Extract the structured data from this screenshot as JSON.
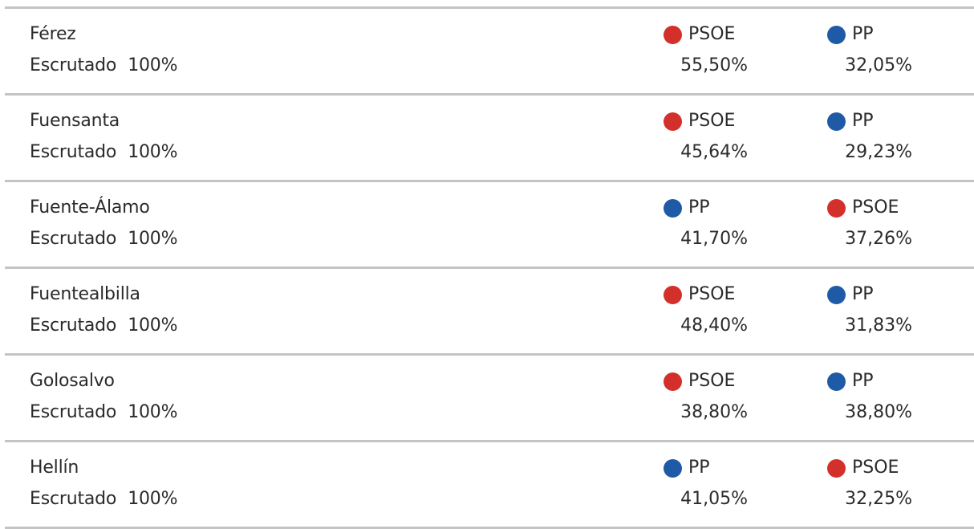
{
  "colors": {
    "PSOE": "#d3302b",
    "PP": "#1f5aa6",
    "divider": "#c4c4c4"
  },
  "rows": [
    {
      "municipality": "Férez",
      "status_label": "Escrutado",
      "status_value": "100%",
      "first": {
        "party": "PSOE",
        "percent": "55,50%"
      },
      "second": {
        "party": "PP",
        "percent": "32,05%"
      }
    },
    {
      "municipality": "Fuensanta",
      "status_label": "Escrutado",
      "status_value": "100%",
      "first": {
        "party": "PSOE",
        "percent": "45,64%"
      },
      "second": {
        "party": "PP",
        "percent": "29,23%"
      }
    },
    {
      "municipality": "Fuente-Álamo",
      "status_label": "Escrutado",
      "status_value": "100%",
      "first": {
        "party": "PP",
        "percent": "41,70%"
      },
      "second": {
        "party": "PSOE",
        "percent": "37,26%"
      }
    },
    {
      "municipality": "Fuentealbilla",
      "status_label": "Escrutado",
      "status_value": "100%",
      "first": {
        "party": "PSOE",
        "percent": "48,40%"
      },
      "second": {
        "party": "PP",
        "percent": "31,83%"
      }
    },
    {
      "municipality": "Golosalvo",
      "status_label": "Escrutado",
      "status_value": "100%",
      "first": {
        "party": "PSOE",
        "percent": "38,80%"
      },
      "second": {
        "party": "PP",
        "percent": "38,80%"
      }
    },
    {
      "municipality": "Hellín",
      "status_label": "Escrutado",
      "status_value": "100%",
      "first": {
        "party": "PP",
        "percent": "41,05%"
      },
      "second": {
        "party": "PSOE",
        "percent": "32,25%"
      }
    }
  ]
}
